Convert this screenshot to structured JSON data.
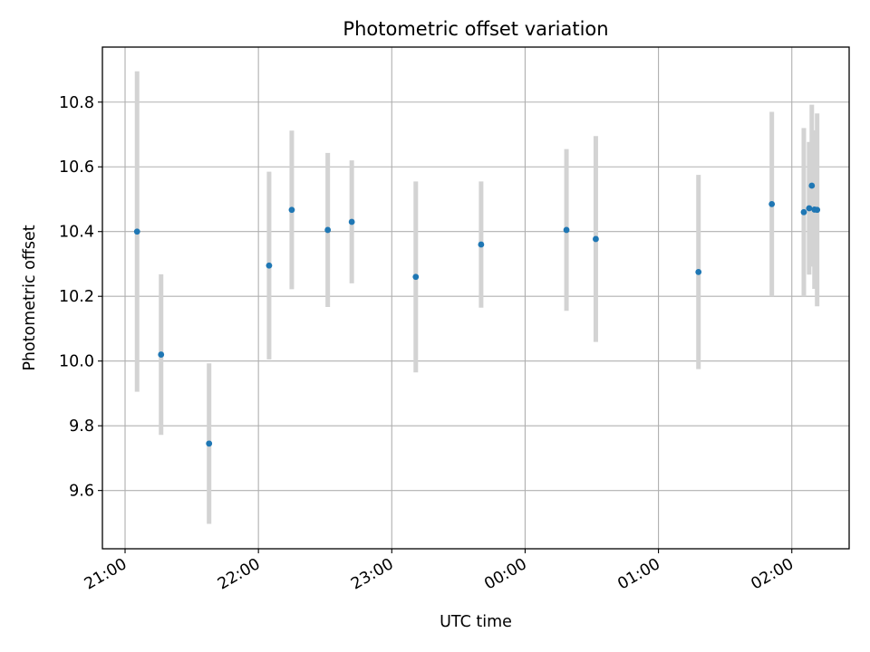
{
  "chart_data": {
    "type": "scatter",
    "title": "Photometric offset variation",
    "xlabel": "UTC time",
    "ylabel": "Photometric offset",
    "x_unit": "hours since 21:00 UTC",
    "xlim": [
      -0.17,
      5.43
    ],
    "ylim": [
      9.42,
      10.97
    ],
    "grid": true,
    "x_ticks": [
      {
        "value": 0,
        "label": "21:00"
      },
      {
        "value": 1,
        "label": "22:00"
      },
      {
        "value": 2,
        "label": "23:00"
      },
      {
        "value": 3,
        "label": "00:00"
      },
      {
        "value": 4,
        "label": "01:00"
      },
      {
        "value": 5,
        "label": "02:00"
      }
    ],
    "y_ticks": [
      {
        "value": 9.6,
        "label": "9.6"
      },
      {
        "value": 9.8,
        "label": "9.8"
      },
      {
        "value": 10.0,
        "label": "10.0"
      },
      {
        "value": 10.2,
        "label": "10.2"
      },
      {
        "value": 10.4,
        "label": "10.4"
      },
      {
        "value": 10.6,
        "label": "10.6"
      },
      {
        "value": 10.8,
        "label": "10.8"
      }
    ],
    "series": [
      {
        "name": "Photometric offset",
        "color": "#1f77b4",
        "errorbar_color": "#d3d3d3",
        "points": [
          {
            "x": 0.09,
            "y": 10.4,
            "err": 0.495
          },
          {
            "x": 0.27,
            "y": 10.02,
            "err": 0.248
          },
          {
            "x": 0.63,
            "y": 9.745,
            "err": 0.248
          },
          {
            "x": 1.08,
            "y": 10.295,
            "err": 0.29
          },
          {
            "x": 1.25,
            "y": 10.467,
            "err": 0.245
          },
          {
            "x": 1.52,
            "y": 10.405,
            "err": 0.238
          },
          {
            "x": 1.7,
            "y": 10.43,
            "err": 0.19
          },
          {
            "x": 2.18,
            "y": 10.26,
            "err": 0.295
          },
          {
            "x": 2.67,
            "y": 10.36,
            "err": 0.195
          },
          {
            "x": 3.31,
            "y": 10.405,
            "err": 0.25
          },
          {
            "x": 3.53,
            "y": 10.377,
            "err": 0.318
          },
          {
            "x": 4.3,
            "y": 10.275,
            "err": 0.3
          },
          {
            "x": 4.85,
            "y": 10.485,
            "err": 0.285
          },
          {
            "x": 5.09,
            "y": 10.46,
            "err": 0.26
          },
          {
            "x": 5.13,
            "y": 10.472,
            "err": 0.205
          },
          {
            "x": 5.15,
            "y": 10.542,
            "err": 0.25
          },
          {
            "x": 5.17,
            "y": 10.468,
            "err": 0.245
          },
          {
            "x": 5.19,
            "y": 10.467,
            "err": 0.298
          }
        ]
      }
    ]
  }
}
